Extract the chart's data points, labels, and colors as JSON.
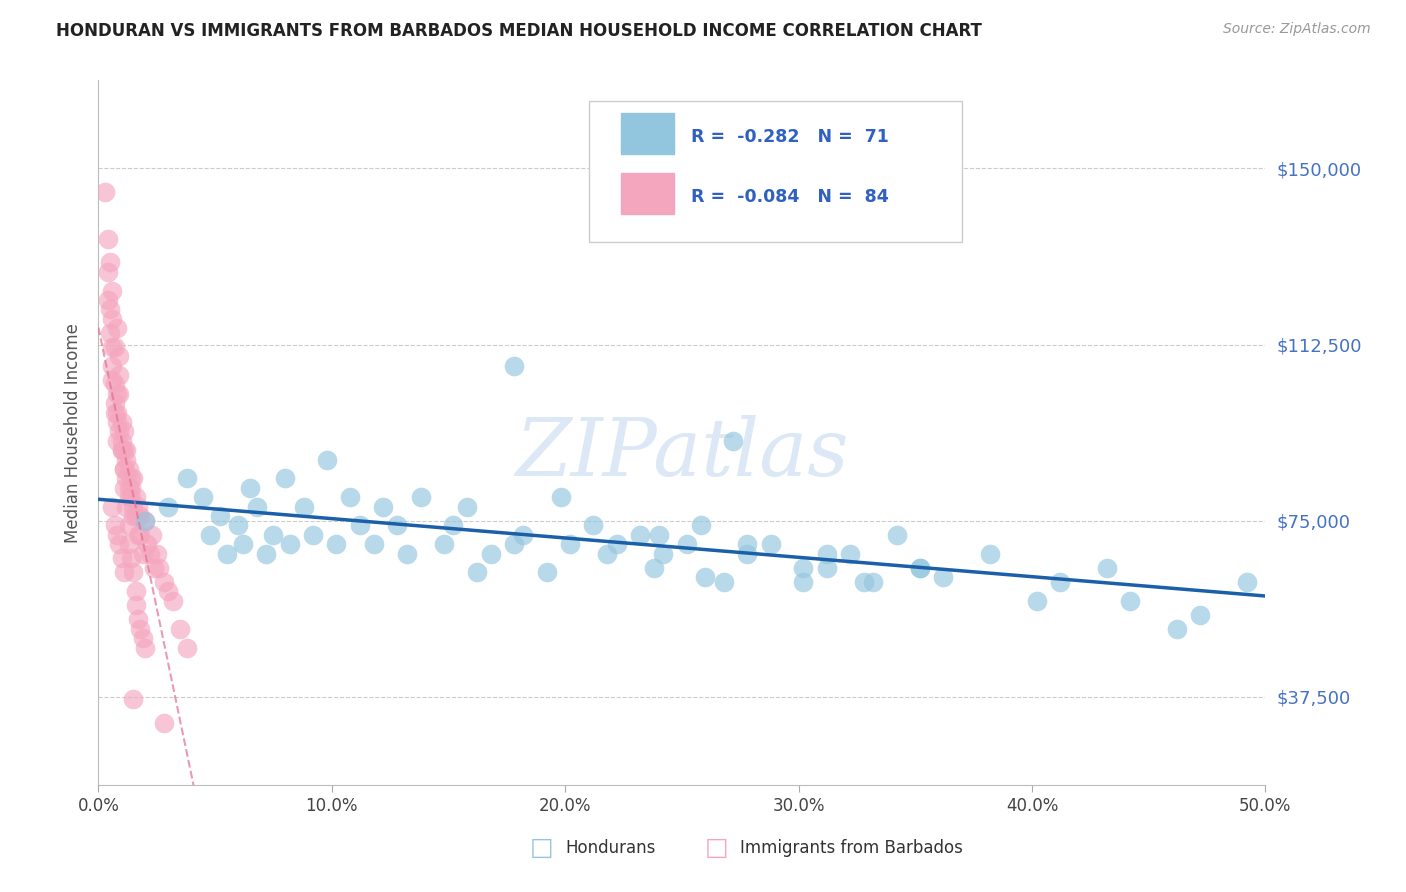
{
  "title": "HONDURAN VS IMMIGRANTS FROM BARBADOS MEDIAN HOUSEHOLD INCOME CORRELATION CHART",
  "source": "Source: ZipAtlas.com",
  "ylabel": "Median Household Income",
  "xlim": [
    0.0,
    0.5
  ],
  "ylim": [
    18750,
    168750
  ],
  "yticks": [
    37500,
    75000,
    112500,
    150000
  ],
  "ytick_labels": [
    "$37,500",
    "$75,000",
    "$112,500",
    "$150,000"
  ],
  "xticks": [
    0.0,
    0.1,
    0.2,
    0.3,
    0.4,
    0.5
  ],
  "xtick_labels": [
    "0.0%",
    "10.0%",
    "20.0%",
    "30.0%",
    "40.0%",
    "50.0%"
  ],
  "legend_r_blue": "-0.282",
  "legend_n_blue": "71",
  "legend_r_pink": "-0.084",
  "legend_n_pink": "84",
  "blue_color": "#92c5de",
  "pink_color": "#f4a6bf",
  "line_blue": "#1a5fa8",
  "line_pink": "#e07090",
  "watermark": "ZIPatlas",
  "watermark_color": "#dce8f5",
  "legend_text_color": "#3060c0",
  "ytick_color": "#4472c4",
  "blue_scatter_x": [
    0.02,
    0.03,
    0.038,
    0.045,
    0.048,
    0.052,
    0.055,
    0.06,
    0.062,
    0.065,
    0.068,
    0.072,
    0.075,
    0.08,
    0.082,
    0.088,
    0.092,
    0.098,
    0.102,
    0.108,
    0.112,
    0.118,
    0.122,
    0.128,
    0.132,
    0.138,
    0.148,
    0.152,
    0.158,
    0.162,
    0.168,
    0.178,
    0.182,
    0.192,
    0.198,
    0.202,
    0.212,
    0.218,
    0.222,
    0.232,
    0.238,
    0.242,
    0.252,
    0.258,
    0.268,
    0.278,
    0.288,
    0.302,
    0.312,
    0.322,
    0.332,
    0.352,
    0.362,
    0.382,
    0.402,
    0.412,
    0.432,
    0.442,
    0.462,
    0.472,
    0.492,
    0.178,
    0.24,
    0.26,
    0.272,
    0.278,
    0.302,
    0.312,
    0.328,
    0.342,
    0.352
  ],
  "blue_scatter_y": [
    75000,
    78000,
    84000,
    80000,
    72000,
    76000,
    68000,
    74000,
    70000,
    82000,
    78000,
    68000,
    72000,
    84000,
    70000,
    78000,
    72000,
    88000,
    70000,
    80000,
    74000,
    70000,
    78000,
    74000,
    68000,
    80000,
    70000,
    74000,
    78000,
    64000,
    68000,
    70000,
    72000,
    64000,
    80000,
    70000,
    74000,
    68000,
    70000,
    72000,
    65000,
    68000,
    70000,
    74000,
    62000,
    68000,
    70000,
    62000,
    65000,
    68000,
    62000,
    65000,
    63000,
    68000,
    58000,
    62000,
    65000,
    58000,
    52000,
    55000,
    62000,
    108000,
    72000,
    63000,
    92000,
    70000,
    65000,
    68000,
    62000,
    72000,
    65000
  ],
  "pink_scatter_x": [
    0.003,
    0.004,
    0.004,
    0.005,
    0.005,
    0.006,
    0.006,
    0.006,
    0.007,
    0.007,
    0.007,
    0.008,
    0.008,
    0.008,
    0.009,
    0.009,
    0.009,
    0.01,
    0.01,
    0.01,
    0.011,
    0.011,
    0.011,
    0.012,
    0.012,
    0.012,
    0.013,
    0.013,
    0.013,
    0.014,
    0.014,
    0.014,
    0.015,
    0.015,
    0.015,
    0.016,
    0.016,
    0.017,
    0.017,
    0.018,
    0.018,
    0.019,
    0.02,
    0.021,
    0.022,
    0.023,
    0.024,
    0.025,
    0.026,
    0.028,
    0.03,
    0.032,
    0.035,
    0.038,
    0.004,
    0.005,
    0.006,
    0.006,
    0.007,
    0.008,
    0.008,
    0.009,
    0.01,
    0.011,
    0.011,
    0.012,
    0.013,
    0.013,
    0.014,
    0.015,
    0.016,
    0.016,
    0.017,
    0.018,
    0.019,
    0.02,
    0.006,
    0.007,
    0.008,
    0.009,
    0.01,
    0.011,
    0.015,
    0.028
  ],
  "pink_scatter_y": [
    145000,
    128000,
    122000,
    120000,
    115000,
    112000,
    108000,
    105000,
    104000,
    100000,
    98000,
    96000,
    92000,
    116000,
    110000,
    106000,
    102000,
    96000,
    92000,
    90000,
    94000,
    90000,
    86000,
    88000,
    84000,
    90000,
    86000,
    82000,
    80000,
    84000,
    80000,
    82000,
    78000,
    76000,
    84000,
    80000,
    76000,
    78000,
    72000,
    76000,
    72000,
    68000,
    75000,
    70000,
    68000,
    72000,
    65000,
    68000,
    65000,
    62000,
    60000,
    58000,
    52000,
    48000,
    135000,
    130000,
    124000,
    118000,
    112000,
    102000,
    98000,
    94000,
    90000,
    86000,
    82000,
    78000,
    74000,
    70000,
    67000,
    64000,
    60000,
    57000,
    54000,
    52000,
    50000,
    48000,
    78000,
    74000,
    72000,
    70000,
    67000,
    64000,
    37000,
    32000
  ]
}
